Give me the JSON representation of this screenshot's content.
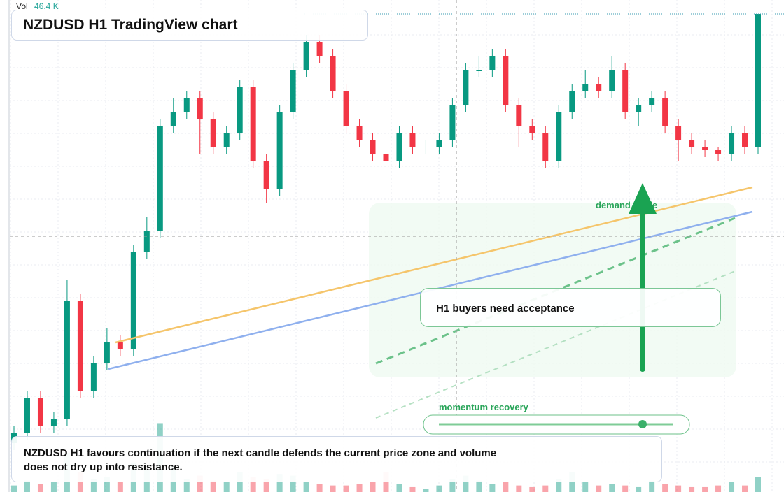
{
  "chart_data": {
    "type": "candlestick",
    "title": "NZDUSD H1 TradingView chart",
    "ylim": [
      0,
      704
    ],
    "up_color": "#089981",
    "down_color": "#f23645",
    "candles": [
      [
        70,
        94,
        60,
        84
      ],
      [
        84,
        144,
        74,
        134
      ],
      [
        134,
        144,
        84,
        94
      ],
      [
        94,
        114,
        84,
        104
      ],
      [
        104,
        304,
        94,
        274
      ],
      [
        274,
        284,
        134,
        144
      ],
      [
        144,
        194,
        134,
        184
      ],
      [
        184,
        234,
        174,
        214
      ],
      [
        214,
        224,
        194,
        204
      ],
      [
        204,
        354,
        194,
        344
      ],
      [
        344,
        394,
        334,
        374
      ],
      [
        374,
        534,
        364,
        524
      ],
      [
        524,
        564,
        514,
        544
      ],
      [
        544,
        574,
        534,
        564
      ],
      [
        564,
        574,
        484,
        534
      ],
      [
        534,
        544,
        484,
        494
      ],
      [
        494,
        524,
        484,
        514
      ],
      [
        514,
        589,
        504,
        579
      ],
      [
        579,
        589,
        464,
        474
      ],
      [
        474,
        484,
        414,
        434
      ],
      [
        434,
        554,
        424,
        544
      ],
      [
        544,
        614,
        534,
        604
      ],
      [
        604,
        654,
        594,
        644
      ],
      [
        644,
        654,
        614,
        624
      ],
      [
        624,
        634,
        564,
        574
      ],
      [
        574,
        584,
        514,
        524
      ],
      [
        524,
        534,
        494,
        504
      ],
      [
        504,
        514,
        474,
        484
      ],
      [
        484,
        494,
        454,
        474
      ],
      [
        474,
        524,
        464,
        514
      ],
      [
        514,
        524,
        484,
        494
      ],
      [
        494,
        504,
        484,
        494
      ],
      [
        494,
        514,
        484,
        504
      ],
      [
        504,
        564,
        494,
        554
      ],
      [
        554,
        614,
        544,
        604
      ],
      [
        604,
        624,
        594,
        604
      ],
      [
        604,
        634,
        594,
        624
      ],
      [
        624,
        634,
        544,
        554
      ],
      [
        554,
        564,
        494,
        524
      ],
      [
        524,
        534,
        504,
        514
      ],
      [
        514,
        524,
        464,
        474
      ],
      [
        474,
        554,
        464,
        544
      ],
      [
        544,
        584,
        534,
        574
      ],
      [
        574,
        604,
        564,
        584
      ],
      [
        584,
        594,
        564,
        574
      ],
      [
        574,
        624,
        564,
        604
      ],
      [
        604,
        614,
        534,
        544
      ],
      [
        544,
        564,
        524,
        554
      ],
      [
        554,
        574,
        544,
        564
      ],
      [
        564,
        574,
        514,
        524
      ],
      [
        524,
        534,
        474,
        504
      ],
      [
        504,
        514,
        484,
        494
      ],
      [
        494,
        504,
        479,
        489
      ],
      [
        489,
        494,
        474,
        484
      ],
      [
        484,
        524,
        474,
        514
      ],
      [
        514,
        524,
        484,
        494
      ],
      [
        494,
        684,
        484,
        684
      ]
    ],
    "volume": {
      "name": "Vol",
      "last_label": "46.4 K",
      "ylim": [
        0,
        1500
      ],
      "values": [
        20,
        35,
        25,
        30,
        120,
        60,
        40,
        45,
        30,
        90,
        70,
        210,
        80,
        40,
        50,
        35,
        30,
        60,
        45,
        40,
        55,
        50,
        30,
        25,
        20,
        20,
        25,
        30,
        60,
        25,
        15,
        10,
        20,
        40,
        50,
        35,
        25,
        30,
        20,
        15,
        20,
        40,
        60,
        30,
        20,
        25,
        20,
        15,
        35,
        25,
        20,
        15,
        15,
        20,
        30,
        20,
        46.4
      ]
    },
    "annotations": {
      "zone": "demand guide",
      "callout": "H1 buyers need acceptance",
      "slider": "momentum recovery",
      "note": "NZDUSD H1 favours continuation if the next candle defends the current price zone and volume does not dry up into resistance."
    }
  }
}
